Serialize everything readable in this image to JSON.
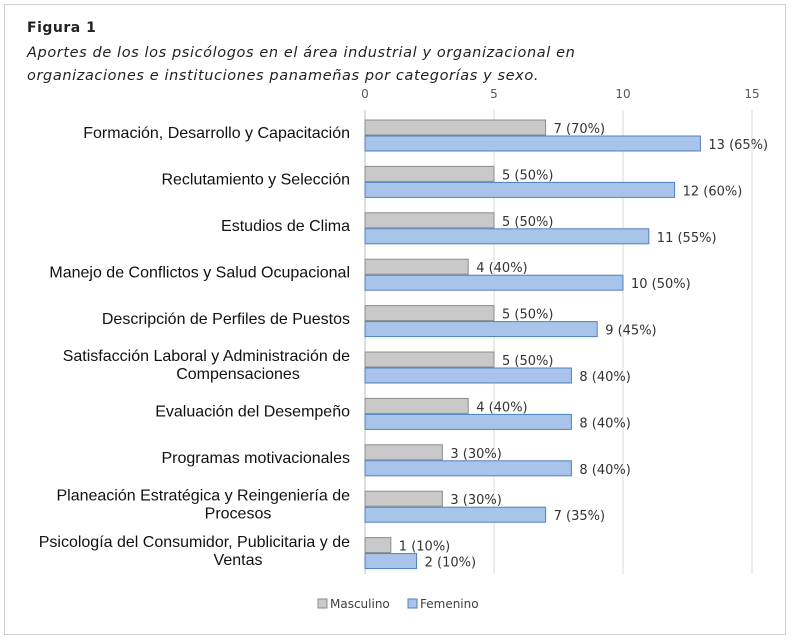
{
  "figure": {
    "label": "Figura 1",
    "caption": " Aportes de los los psicólogos en el área industrial y organizacional en organizaciones e instituciones panameñas por categorías y sexo."
  },
  "chart_data": {
    "type": "bar",
    "orientation": "horizontal",
    "categories": [
      [
        "Formación, Desarrollo y Capacitación"
      ],
      [
        "Reclutamiento y Selección"
      ],
      [
        "Estudios de Clima"
      ],
      [
        "Manejo de Conflictos y Salud Ocupacional"
      ],
      [
        "Descripción de Perfiles de Puestos"
      ],
      [
        "Satisfacción Laboral y Administración de",
        "Compensaciones"
      ],
      [
        "Evaluación del Desempeño"
      ],
      [
        "Programas motivacionales"
      ],
      [
        "Planeación Estratégica y Reingeniería de",
        "Procesos"
      ],
      [
        "Psicología del Consumidor, Publicitaria y de",
        "Ventas"
      ]
    ],
    "series": [
      {
        "name": "Masculino",
        "color": "#c9c9c9",
        "stroke": "#8c8c8c",
        "values": [
          7,
          5,
          5,
          4,
          5,
          5,
          4,
          3,
          3,
          1
        ],
        "labels": [
          "7  (70%)",
          "5  (50%)",
          "5 (50%)",
          "4  (40%)",
          "5  (50%)",
          "5  (50%)",
          "4  (40%)",
          "3 (30%)",
          "3 (30%)",
          "1 (10%)"
        ]
      },
      {
        "name": "Femenino",
        "color": "#a9c4eb",
        "stroke": "#4f81bd",
        "values": [
          13,
          12,
          11,
          10,
          9,
          8,
          8,
          8,
          7,
          2
        ],
        "labels": [
          "13  (65%)",
          "12 (60%)",
          "11 (55%)",
          "10 (50%)",
          "9  (45%)",
          "8 (40%)",
          "8 (40%)",
          "8 (40%)",
          "7 (35%)",
          "2 (10%)"
        ]
      }
    ],
    "x_ticks": [
      "0",
      "5",
      "10",
      "15"
    ],
    "xlim": [
      0,
      15
    ],
    "grid": true,
    "legend_position": "bottom"
  }
}
